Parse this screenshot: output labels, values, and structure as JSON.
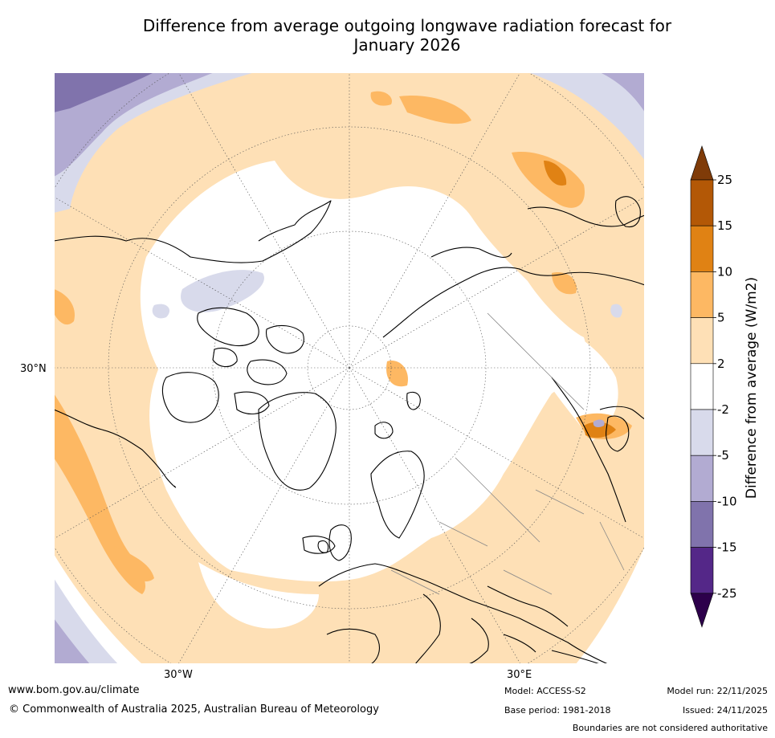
{
  "title_line1": "Difference from average outgoing longwave radiation forecast for",
  "title_line2": "January 2026",
  "map": {
    "lat_label": "30°N",
    "lon_label_west": "30°W",
    "lon_label_east": "30°E"
  },
  "colorbar": {
    "title": "Difference from average (W/m2)",
    "tick_labels": [
      "25",
      "15",
      "10",
      "5",
      "2",
      "-2",
      "-5",
      "-10",
      "-15",
      "-25"
    ],
    "bins": [
      {
        "range": "> 25",
        "color": "#7f3b08"
      },
      {
        "range": "15 to 25",
        "color": "#b35806"
      },
      {
        "range": "10 to 15",
        "color": "#e08214"
      },
      {
        "range": "5 to 10",
        "color": "#fdb863"
      },
      {
        "range": "2 to 5",
        "color": "#fee0b6"
      },
      {
        "range": "-2 to 2",
        "color": "#ffffff"
      },
      {
        "range": "-5 to -2",
        "color": "#d8daeb"
      },
      {
        "range": "-10 to -5",
        "color": "#b2abd2"
      },
      {
        "range": "-15 to -10",
        "color": "#8073ac"
      },
      {
        "range": "-25 to -15",
        "color": "#542788"
      },
      {
        "range": "< -25",
        "color": "#2d004b"
      }
    ]
  },
  "footer": {
    "website": "www.bom.gov.au/climate",
    "copyright": "© Commonwealth of Australia 2025, Australian Bureau of Meteorology",
    "model": "Model: ACCESS-S2",
    "base_period": "Base period: 1981-2018",
    "model_run": "Model run: 22/11/2025",
    "issued": "Issued: 24/11/2025",
    "disclaimer": "Boundaries are not considered authoritative"
  }
}
